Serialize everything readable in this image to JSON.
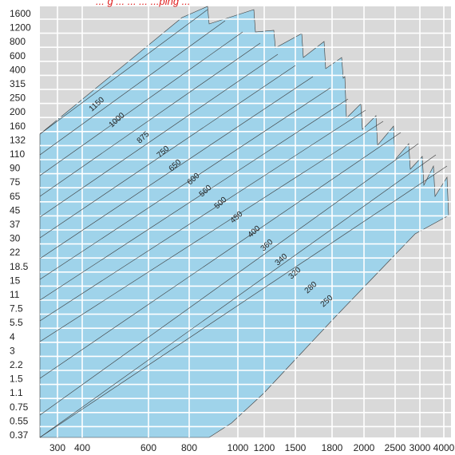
{
  "caption_fragment": "... g ... ... ... ...ping ...",
  "chart_data": {
    "type": "area",
    "title": "",
    "xlabel": "",
    "ylabel": "",
    "x_tick_labels": [
      "300",
      "400",
      "600",
      "800",
      "1000",
      "1200",
      "1500",
      "1800",
      "2000",
      "2500",
      "3000",
      "4000"
    ],
    "y_tick_labels": [
      "0.37",
      "0.55",
      "0.75",
      "1.1",
      "1.5",
      "2.2",
      "3",
      "4",
      "5.5",
      "7.5",
      "11",
      "15",
      "18.5",
      "22",
      "30",
      "37",
      "45",
      "65",
      "75",
      "90",
      "110",
      "132",
      "160",
      "200",
      "250",
      "315",
      "400",
      "600",
      "800",
      "1200",
      "1600"
    ],
    "grid": true,
    "band_lower_x_at_min_y": [
      "300",
      "300",
      "300",
      "300",
      "300",
      "300",
      "300",
      "300",
      "300",
      "300",
      "300",
      "300",
      "300",
      "300",
      "400",
      "600"
    ],
    "band_top": [
      {
        "x": "300",
        "y": "160"
      },
      {
        "x": "800",
        "y": "1200"
      },
      {
        "x": "1000",
        "y": "800"
      },
      {
        "x": "1200",
        "y": "600"
      },
      {
        "x": "1500",
        "y": "400"
      },
      {
        "x": "1800",
        "y": "200"
      },
      {
        "x": "2000",
        "y": "110"
      },
      {
        "x": "2500",
        "y": "90"
      },
      {
        "x": "3000",
        "y": "65"
      },
      {
        "x": "4000",
        "y": "45"
      }
    ],
    "series": [
      {
        "name": "1150"
      },
      {
        "name": "1000"
      },
      {
        "name": "875"
      },
      {
        "name": "750"
      },
      {
        "name": "650"
      },
      {
        "name": "600"
      },
      {
        "name": "560"
      },
      {
        "name": "500"
      },
      {
        "name": "450"
      },
      {
        "name": "400"
      },
      {
        "name": "360"
      },
      {
        "name": "340"
      },
      {
        "name": "320"
      },
      {
        "name": "280"
      },
      {
        "name": "250"
      }
    ],
    "colors": {
      "fill": "#9fd3ea",
      "background": "#d9d9d9",
      "grid": "#ffffff",
      "line": "#3a3a3a",
      "caption": "#e02020"
    }
  }
}
